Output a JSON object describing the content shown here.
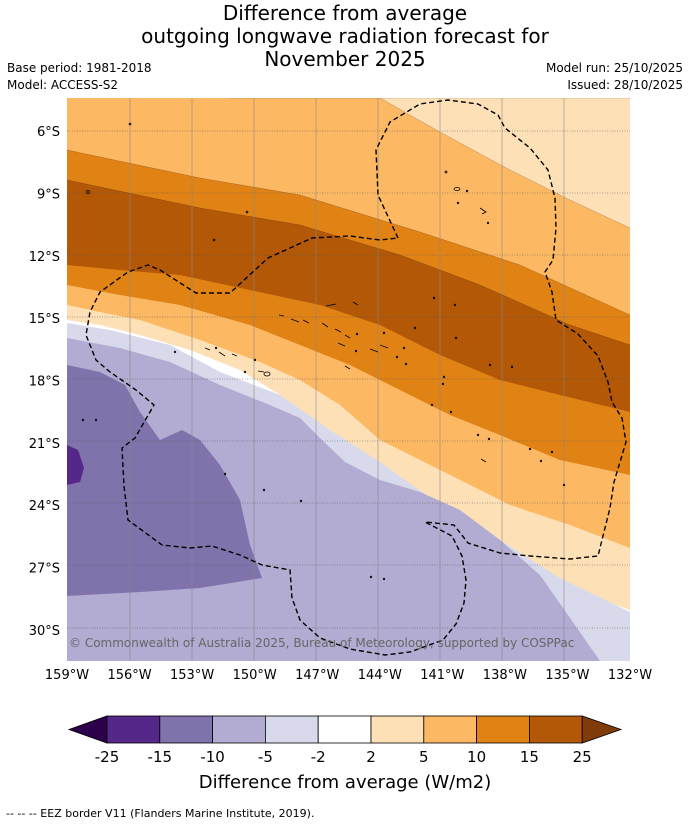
{
  "title": {
    "line1": "Difference from average",
    "line2": "outgoing longwave radiation forecast for",
    "line3": "November 2025"
  },
  "meta": {
    "base_period": "Base period: 1981-2018",
    "model": "Model: ACCESS-S2",
    "model_run": "Model run: 25/10/2025",
    "issued": "Issued: 28/10/2025"
  },
  "map": {
    "copyright": "© Commonwealth of Australia 2025, Bureau of Meteorology, supported by COSPPac",
    "lon_labels": [
      "159°W",
      "156°W",
      "153°W",
      "150°W",
      "147°W",
      "144°W",
      "141°W",
      "138°W",
      "135°W",
      "132°W"
    ],
    "lat_labels": [
      "6°S",
      "9°S",
      "12°S",
      "15°S",
      "18°S",
      "21°S",
      "24°S",
      "27°S",
      "30°S"
    ],
    "lon_range": [
      -159,
      -132
    ],
    "lat_range": [
      -4.4,
      -31.5
    ]
  },
  "colorbar": {
    "ticks": [
      "-25",
      "-15",
      "-10",
      "-5",
      "-2",
      "2",
      "5",
      "10",
      "15",
      "25"
    ],
    "colors": [
      "#2d004b",
      "#542788",
      "#8073ac",
      "#b2abd2",
      "#d8daeb",
      "#ffffff",
      "#fee0b6",
      "#fdb863",
      "#e08214",
      "#b35806",
      "#7f3b08"
    ],
    "label": "Difference from average (W/m2)"
  },
  "footnote": "--  --  -- EEZ border V11 (Flanders Marine Institute, 2019)."
}
